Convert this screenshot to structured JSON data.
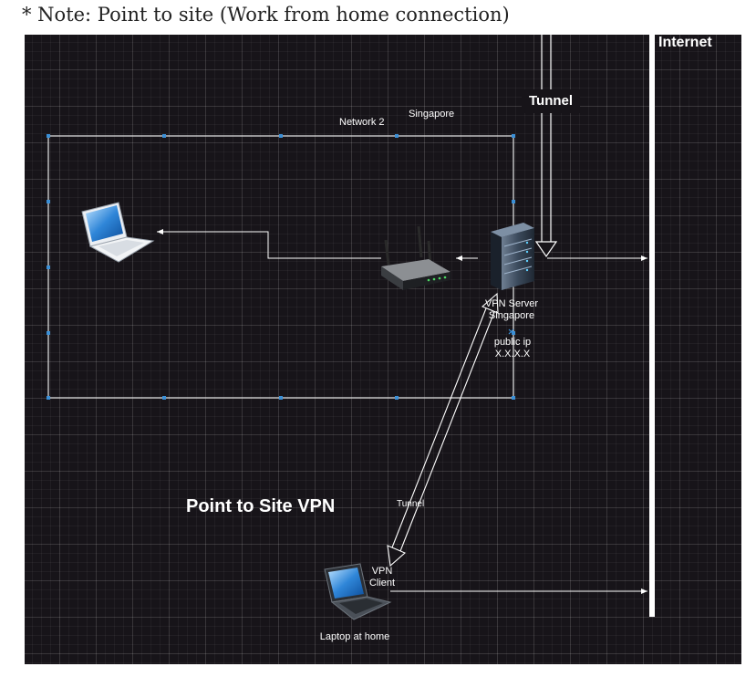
{
  "note": "* Note: Point to site (Work from home connection)",
  "labels": {
    "internet": "Internet",
    "tunnel_top": "Tunnel",
    "network": "Network 2",
    "singapore": "Singapore",
    "vpn_server_line1": "VPN Server",
    "vpn_server_line2": "Singapore",
    "public_ip_line1": "public ip",
    "public_ip_line2": "X.X.X.X",
    "title": "Point to Site VPN",
    "tunnel_small": "Tunnel",
    "vpn_client_line1": "VPN",
    "vpn_client_line2": "Client",
    "laptop_home": "Laptop at home"
  },
  "colors": {
    "background": "#171419",
    "line": "#ffffff",
    "handle": "#3a8fd6"
  },
  "icons": [
    "laptop-icon",
    "router-icon",
    "server-icon",
    "home-laptop-icon"
  ]
}
